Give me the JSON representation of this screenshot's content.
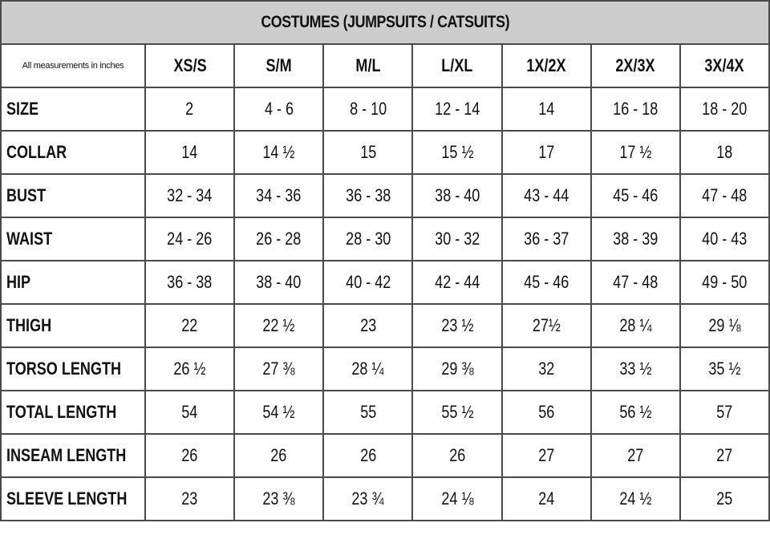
{
  "title": "COSTUMES (JUMPSUITS / CATSUITS)",
  "note": "All measurements in inches",
  "columns": [
    "XS/S",
    "S/M",
    "M/L",
    "L/XL",
    "1X/2X",
    "2X/3X",
    "3X/4X"
  ],
  "rows": [
    {
      "label": "SIZE",
      "values": [
        "2",
        "4 - 6",
        "8 - 10",
        "12 - 14",
        "14",
        "16 - 18",
        "18 - 20"
      ]
    },
    {
      "label": "COLLAR",
      "values": [
        "14",
        "14 ½",
        "15",
        "15 ½",
        "17",
        "17 ½",
        "18"
      ]
    },
    {
      "label": "BUST",
      "values": [
        "32 - 34",
        "34 - 36",
        "36 - 38",
        "38 - 40",
        "43 - 44",
        "45 - 46",
        "47 - 48"
      ]
    },
    {
      "label": "WAIST",
      "values": [
        "24 - 26",
        "26 - 28",
        "28 - 30",
        "30 - 32",
        "36 - 37",
        "38 - 39",
        "40 - 43"
      ]
    },
    {
      "label": "HIP",
      "values": [
        "36 - 38",
        "38 - 40",
        "40 - 42",
        "42 - 44",
        "45 - 46",
        "47 - 48",
        "49 - 50"
      ]
    },
    {
      "label": "THIGH",
      "values": [
        "22",
        "22 ½",
        "23",
        "23 ½",
        "27½",
        "28 ¼",
        "29 ⅛"
      ]
    },
    {
      "label": "TORSO LENGTH",
      "values": [
        "26 ½",
        "27 ⅜",
        "28 ¼",
        "29 ⅜",
        "32",
        "33 ½",
        "35 ½"
      ]
    },
    {
      "label": "TOTAL LENGTH",
      "values": [
        "54",
        "54 ½",
        "55",
        "55 ½",
        "56",
        "56 ½",
        "57"
      ]
    },
    {
      "label": "INSEAM LENGTH",
      "values": [
        "26",
        "26",
        "26",
        "26",
        "27",
        "27",
        "27"
      ]
    },
    {
      "label": "SLEEVE LENGTH",
      "values": [
        "23",
        "23 ⅜",
        "23 ¾",
        "24 ⅛",
        "24",
        "24 ½",
        "25"
      ]
    }
  ]
}
